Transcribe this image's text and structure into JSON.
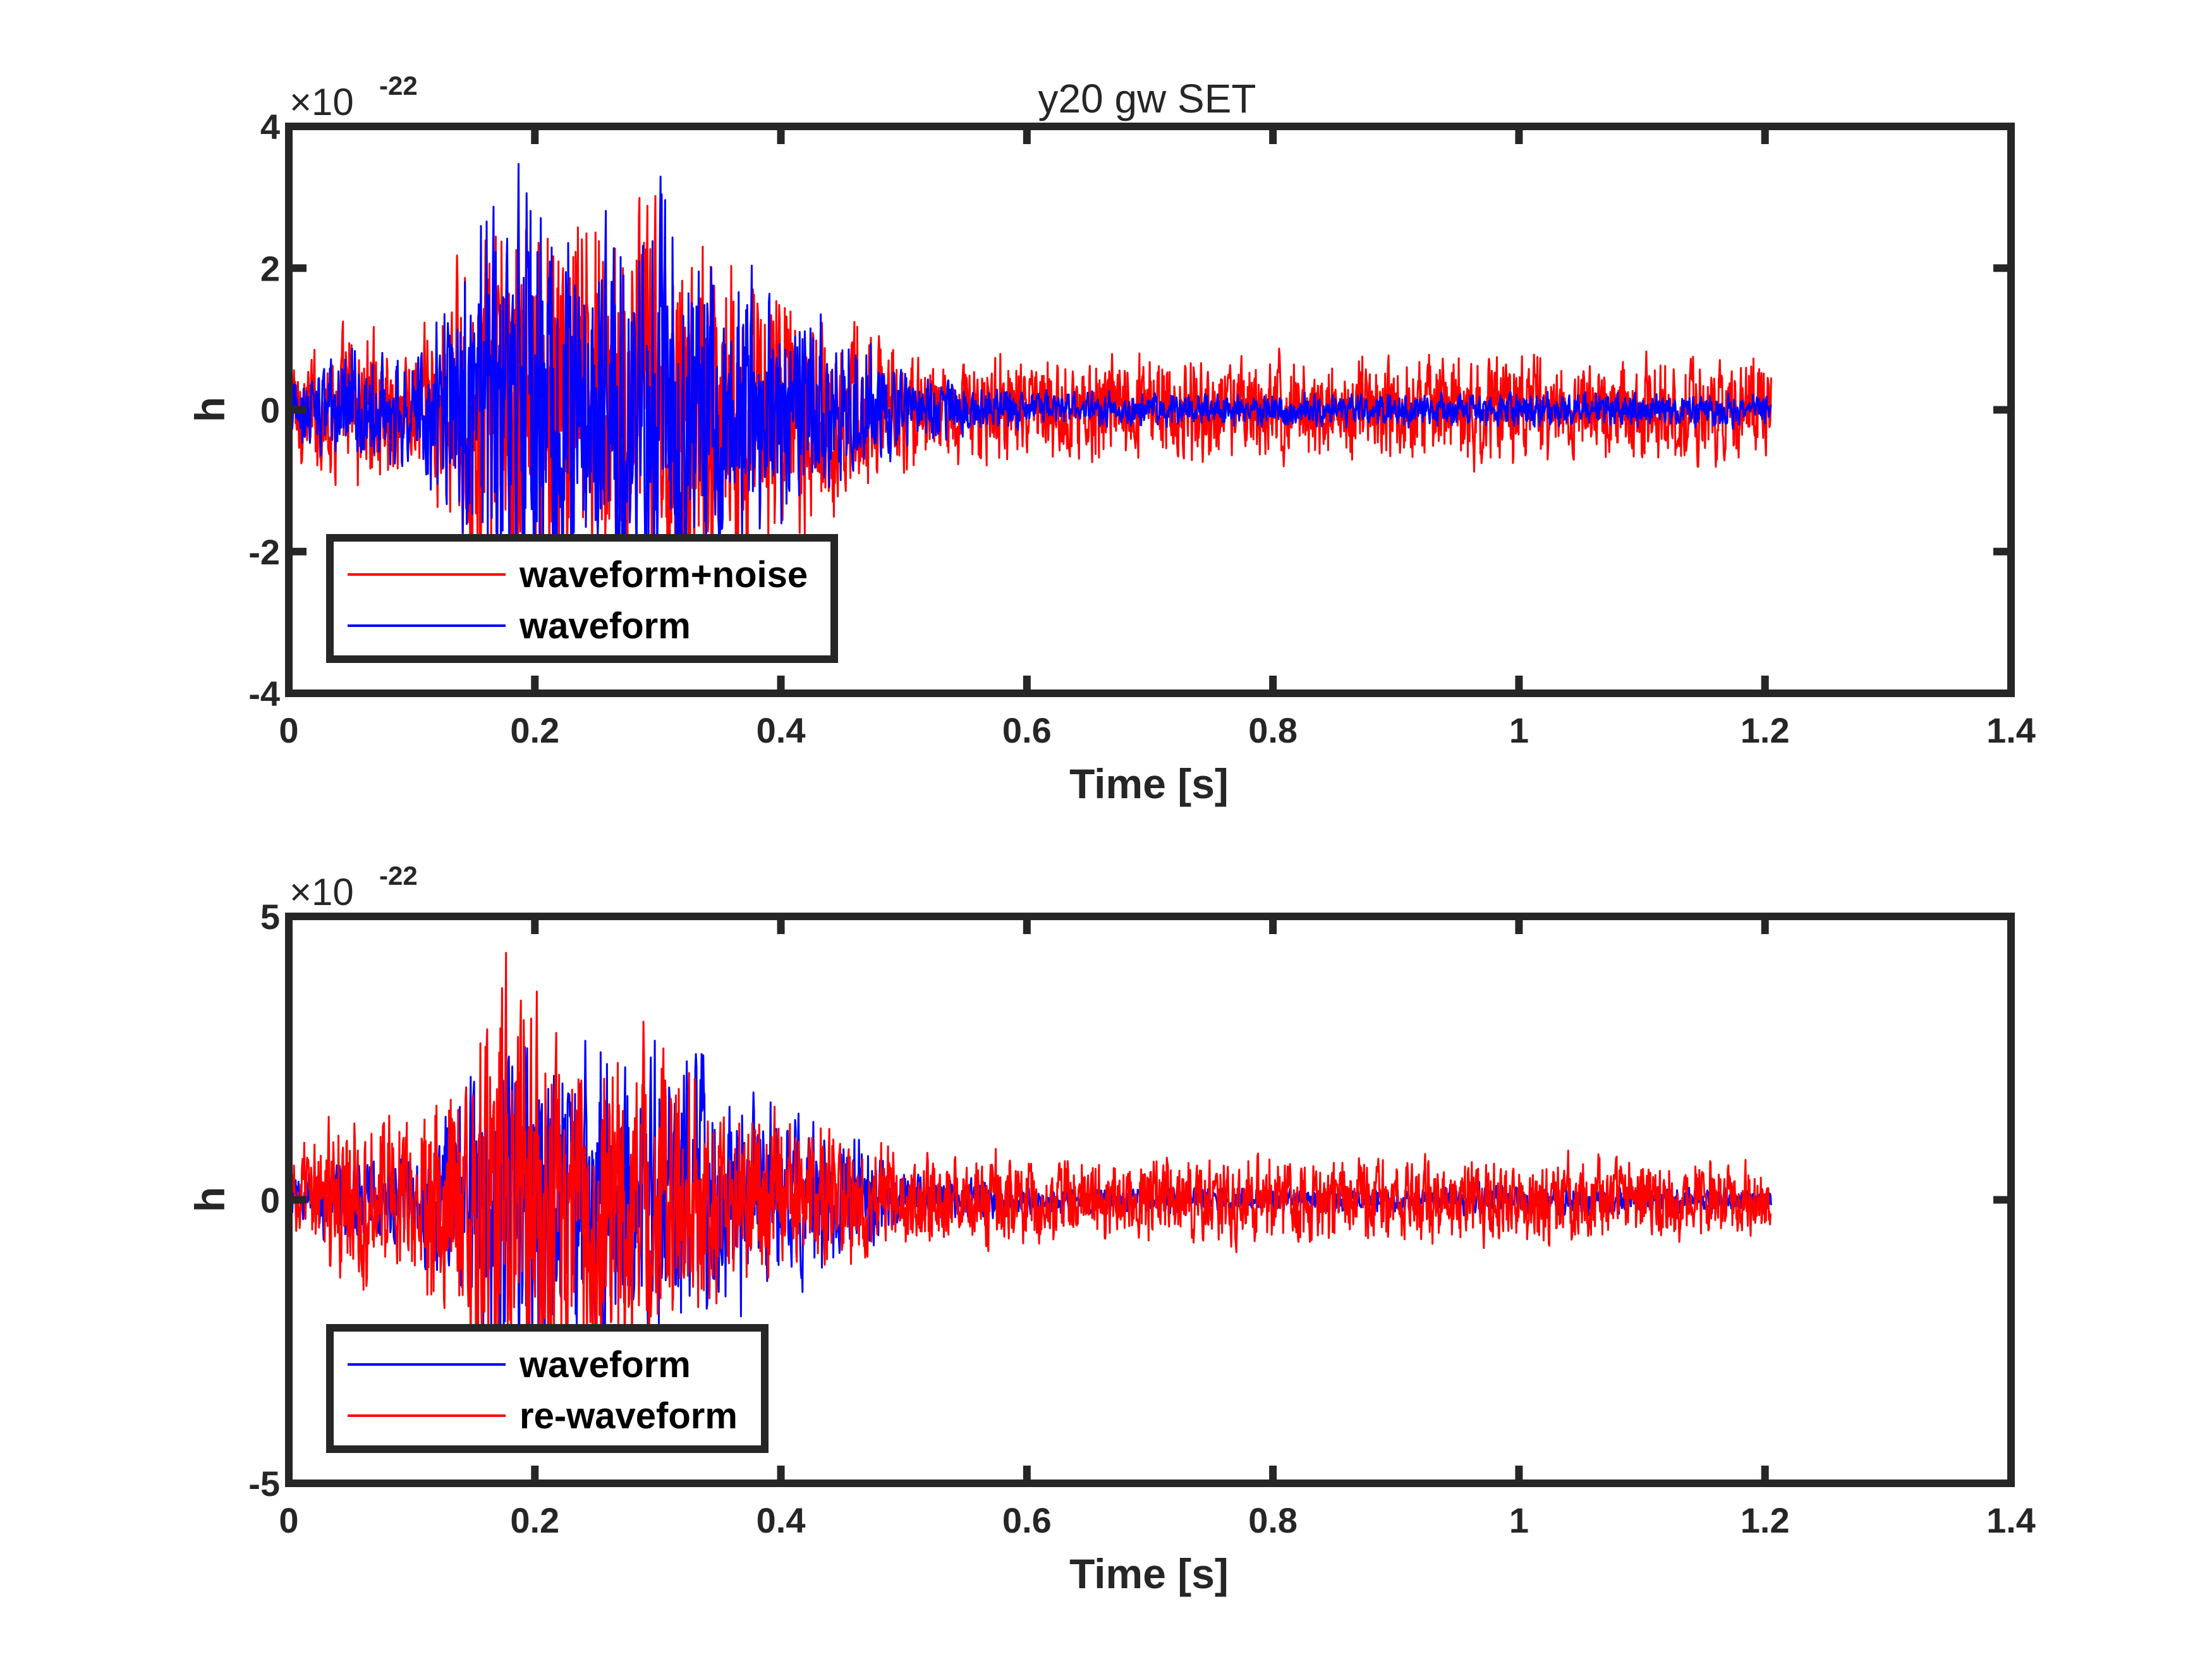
{
  "chart_data": [
    {
      "type": "line",
      "title": "y20 gw SET",
      "xlabel": "Time [s]",
      "ylabel": "h",
      "xlim": [
        0,
        1.4
      ],
      "ylim": [
        -4,
        4
      ],
      "y_exponent_label": "×10",
      "y_exponent_power": "-22",
      "xticks": [
        "0",
        "0.2",
        "0.4",
        "0.6",
        "0.8",
        "1",
        "1.2",
        "1.4"
      ],
      "yticks": [
        "-4",
        "-2",
        "0",
        "2",
        "4"
      ],
      "grid": false,
      "legend_position": "bottom-left",
      "duration_s": 1.205,
      "series": [
        {
          "name": "waveform+noise",
          "color": "#ff0000",
          "envelope_times": [
            0,
            0.05,
            0.1,
            0.15,
            0.18,
            0.22,
            0.26,
            0.3,
            0.34,
            0.4,
            0.46,
            0.5,
            0.6,
            0.8,
            1.0,
            1.2
          ],
          "envelope_amplitudes": [
            0.8,
            1.3,
            1.2,
            2.6,
            3.5,
            3.3,
            3.2,
            3.6,
            2.8,
            2.2,
            1.5,
            1.0,
            0.85,
            0.85,
            0.9,
            0.8
          ]
        },
        {
          "name": "waveform",
          "color": "#0000ff",
          "envelope_times": [
            0,
            0.05,
            0.1,
            0.15,
            0.18,
            0.22,
            0.26,
            0.3,
            0.34,
            0.4,
            0.46,
            0.5,
            0.6,
            0.8,
            1.0,
            1.2
          ],
          "envelope_amplitudes": [
            0.4,
            1.0,
            0.9,
            2.6,
            3.7,
            3.2,
            3.0,
            3.3,
            2.6,
            1.8,
            1.3,
            0.6,
            0.3,
            0.25,
            0.3,
            0.25
          ]
        }
      ]
    },
    {
      "type": "line",
      "title": "",
      "xlabel": "Time [s]",
      "ylabel": "h",
      "xlim": [
        0,
        1.4
      ],
      "ylim": [
        -5,
        5
      ],
      "y_exponent_label": "×10",
      "y_exponent_power": "-22",
      "xticks": [
        "0",
        "0.2",
        "0.4",
        "0.6",
        "0.8",
        "1",
        "1.2",
        "1.4"
      ],
      "yticks": [
        "-5",
        "0",
        "5"
      ],
      "grid": false,
      "legend_position": "bottom-left",
      "duration_s": 1.205,
      "series": [
        {
          "name": "waveform",
          "color": "#0000ff",
          "envelope_times": [
            0,
            0.05,
            0.1,
            0.15,
            0.18,
            0.22,
            0.26,
            0.3,
            0.34,
            0.4,
            0.46,
            0.5,
            0.6,
            0.8,
            1.0,
            1.2
          ],
          "envelope_amplitudes": [
            0.4,
            1.0,
            0.9,
            2.6,
            3.7,
            3.2,
            3.0,
            3.3,
            2.6,
            1.8,
            1.3,
            0.6,
            0.3,
            0.25,
            0.3,
            0.25
          ]
        },
        {
          "name": "re-waveform",
          "color": "#ff0000",
          "envelope_times": [
            0,
            0.05,
            0.1,
            0.15,
            0.18,
            0.22,
            0.26,
            0.3,
            0.34,
            0.4,
            0.46,
            0.5,
            0.6,
            0.8,
            1.0,
            1.2
          ],
          "envelope_amplitudes": [
            0.8,
            1.8,
            1.6,
            3.5,
            4.9,
            3.4,
            3.9,
            2.8,
            2.2,
            1.6,
            1.4,
            1.0,
            0.9,
            0.9,
            0.9,
            0.8
          ]
        }
      ]
    }
  ]
}
